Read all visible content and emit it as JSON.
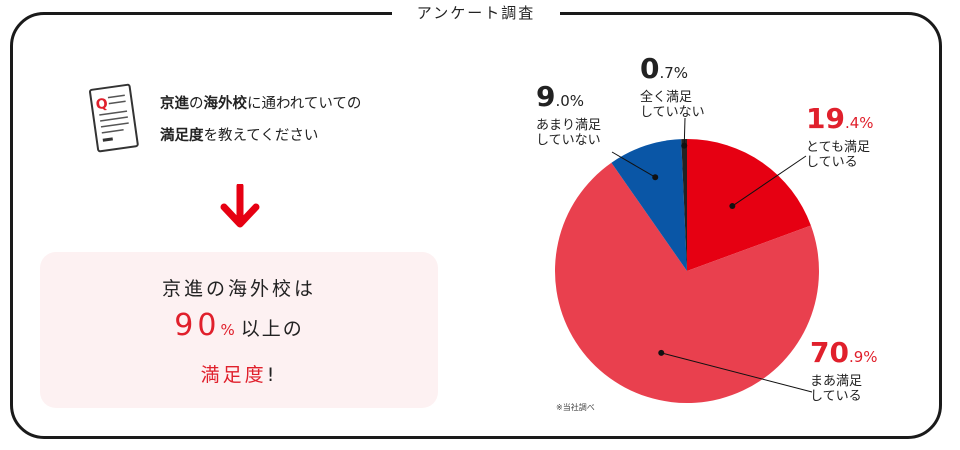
{
  "frame_title": "アンケート調査",
  "question": {
    "line1_bold_a": "京進",
    "line1_a": "の",
    "line1_bold_b": "海外校",
    "line1_b": "に通われていての",
    "line2_bold": "満足度",
    "line2": "を教えてください"
  },
  "answer": {
    "line1": "京進の海外校は",
    "big_number": "90",
    "percent": "%",
    "line2_rest": "以上の",
    "line3": "満足度",
    "line3_excl": "!"
  },
  "note": "※当社調べ",
  "colors": {
    "very_satisfied": "#e60012",
    "somewhat_satisfied": "#e9404e",
    "not_very_satisfied": "#0a56a6",
    "not_at_all_satisfied": "#222222",
    "accent_red": "#e0202c"
  },
  "chart_data": {
    "type": "pie",
    "title": "",
    "slices": [
      {
        "label_line1": "とても満足",
        "label_line2": "している",
        "value": 19.4,
        "int": "19",
        "dec": ".4%",
        "color": "#e60012"
      },
      {
        "label_line1": "まあ満足",
        "label_line2": "している",
        "value": 70.9,
        "int": "70",
        "dec": ".9%",
        "color": "#e9404e"
      },
      {
        "label_line1": "あまり満足",
        "label_line2": "していない",
        "value": 9.0,
        "int": "9",
        "dec": ".0%",
        "color": "#0a56a6"
      },
      {
        "label_line1": "全く満足",
        "label_line2": "していない",
        "value": 0.7,
        "int": "0",
        "dec": ".7%",
        "color": "#222222"
      }
    ]
  }
}
